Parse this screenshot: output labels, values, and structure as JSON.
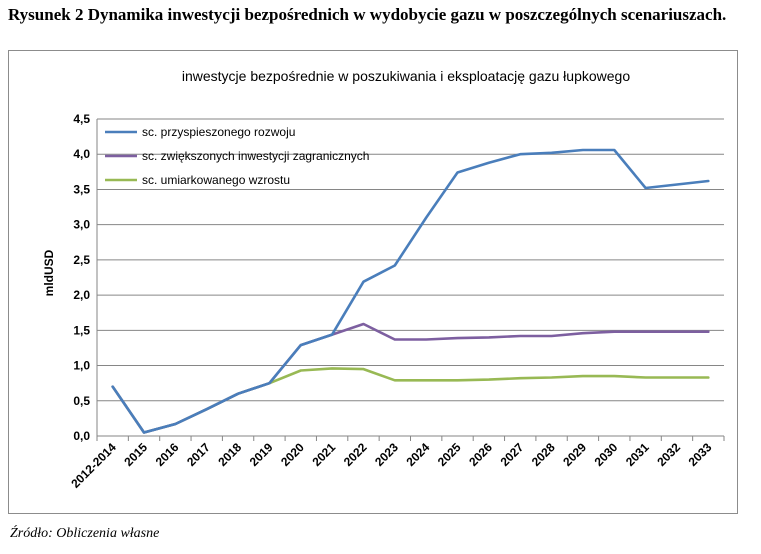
{
  "caption": "Rysunek 2 Dynamika inwestycji bezpośrednich w wydobycie gazu w poszczególnych scenariuszach.",
  "source": "Źródło: Obliczenia własne",
  "chart_data": {
    "type": "line",
    "title": "inwestycje bezpośrednie w poszukiwania i eksploatację gazu łupkowego",
    "xlabel": "",
    "ylabel": "mldUSD",
    "ylim": [
      0,
      4.5
    ],
    "yticks": [
      "0,0",
      "0,5",
      "1,0",
      "1,5",
      "2,0",
      "2,5",
      "3,0",
      "3,5",
      "4,0",
      "4,5"
    ],
    "grid": true,
    "legend_position": "top-left",
    "categories": [
      "2012-2014",
      "2015",
      "2016",
      "2017",
      "2018",
      "2019",
      "2020",
      "2021",
      "2022",
      "2023",
      "2024",
      "2025",
      "2026",
      "2027",
      "2028",
      "2029",
      "2030",
      "2031",
      "2032",
      "2033"
    ],
    "series": [
      {
        "name": "sc. przyspieszonego rozwoju",
        "color": "#4a7ebb",
        "values": [
          0.7,
          0.05,
          0.17,
          0.38,
          0.6,
          0.75,
          1.29,
          1.44,
          2.19,
          2.42,
          3.1,
          3.74,
          3.88,
          4.0,
          4.02,
          4.06,
          4.06,
          3.52,
          3.57,
          3.62
        ]
      },
      {
        "name": "sc. zwiększonych inwestycji zagranicznych",
        "color": "#7d5fa0",
        "values": [
          0.7,
          0.05,
          0.17,
          0.38,
          0.6,
          0.75,
          1.29,
          1.44,
          1.59,
          1.37,
          1.37,
          1.39,
          1.4,
          1.42,
          1.42,
          1.46,
          1.48,
          1.48,
          1.48,
          1.48
        ]
      },
      {
        "name": "sc. umiarkowanego wzrostu",
        "color": "#98b954",
        "values": [
          0.7,
          0.05,
          0.17,
          0.38,
          0.6,
          0.75,
          0.93,
          0.96,
          0.95,
          0.79,
          0.79,
          0.79,
          0.8,
          0.82,
          0.83,
          0.85,
          0.85,
          0.83,
          0.83,
          0.83
        ]
      }
    ]
  }
}
